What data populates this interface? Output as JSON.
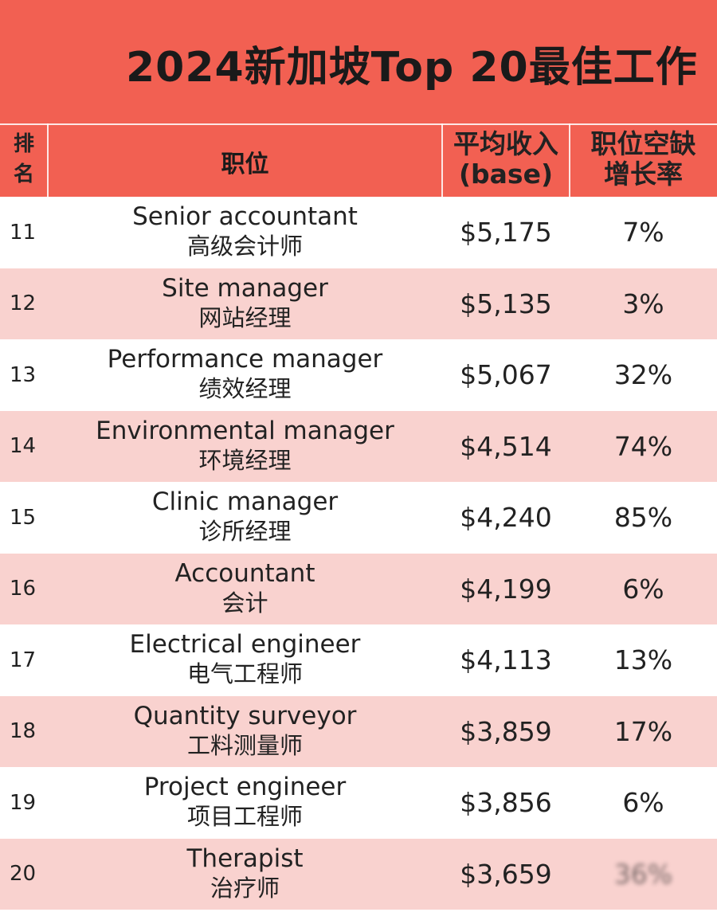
{
  "title": "2024新加坡Top 20最佳工作",
  "colors": {
    "header": "#f26052",
    "row_shade": "#f9d2cf",
    "row_plain": "#ffffff"
  },
  "header": {
    "rank_line1": "排",
    "rank_line2": "名",
    "position": "职位",
    "pay_line1": "平均收入",
    "pay_line2": "(base)",
    "growth_line1": "职位空缺",
    "growth_line2": "增长率"
  },
  "rows": [
    {
      "rank": "11",
      "en": "Senior accountant",
      "zh": "高级会计师",
      "pay": "$5,175",
      "growth": "7%"
    },
    {
      "rank": "12",
      "en": "Site manager",
      "zh": "网站经理",
      "pay": "$5,135",
      "growth": "3%"
    },
    {
      "rank": "13",
      "en": "Performance manager",
      "zh": "绩效经理",
      "pay": "$5,067",
      "growth": "32%"
    },
    {
      "rank": "14",
      "en": "Environmental manager",
      "zh": "环境经理",
      "pay": "$4,514",
      "growth": "74%"
    },
    {
      "rank": "15",
      "en": "Clinic manager",
      "zh": "诊所经理",
      "pay": "$4,240",
      "growth": "85%"
    },
    {
      "rank": "16",
      "en": "Accountant",
      "zh": "会计",
      "pay": "$4,199",
      "growth": "6%"
    },
    {
      "rank": "17",
      "en": "Electrical engineer",
      "zh": "电气工程师",
      "pay": "$4,113",
      "growth": "13%"
    },
    {
      "rank": "18",
      "en": "Quantity surveyor",
      "zh": "工料测量师",
      "pay": "$3,859",
      "growth": "17%"
    },
    {
      "rank": "19",
      "en": "Project engineer",
      "zh": "项目工程师",
      "pay": "$3,856",
      "growth": "6%"
    },
    {
      "rank": "20",
      "en": "Therapist",
      "zh": "治疗师",
      "pay": "$3,659",
      "growth": "36%"
    }
  ]
}
